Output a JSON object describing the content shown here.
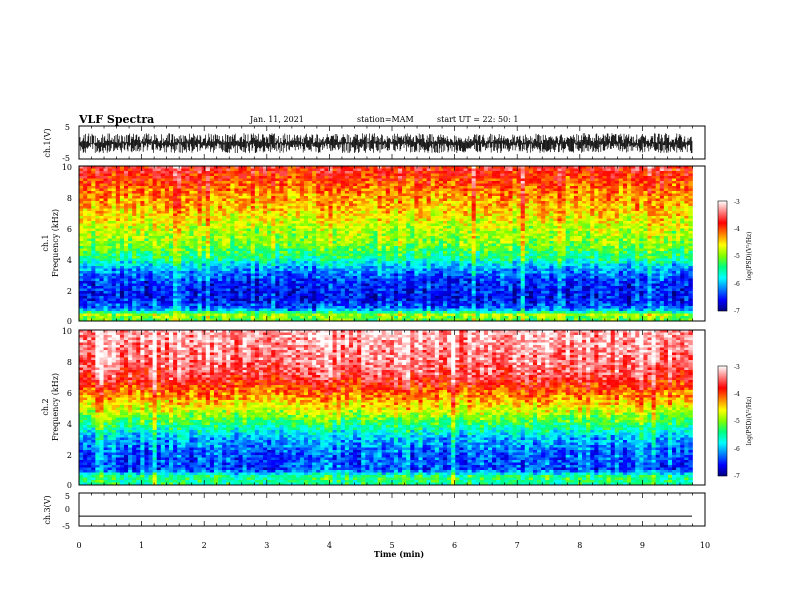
{
  "header": {
    "title": "VLF Spectra",
    "date": "Jan. 11, 2021",
    "station": "station=MAM",
    "start_ut": "start  UT =   22: 50: 1"
  },
  "colors": {
    "colormap": [
      "#00007f",
      "#0000ff",
      "#0080ff",
      "#00ffff",
      "#00ff80",
      "#80ff00",
      "#ffff00",
      "#ff8000",
      "#ff0000",
      "#ff8080",
      "#ffffff"
    ],
    "trace": "#000000",
    "axis": "#000000"
  },
  "chart_data": [
    {
      "type": "line",
      "panel": "ch1-waveform",
      "ylabel": "ch.1(V)",
      "ylim": [
        -5,
        5
      ],
      "y_ticks": [
        "5",
        "-5"
      ],
      "xlim": [
        0,
        10
      ],
      "x_unit": "min",
      "trace_band": [
        -3.2,
        2.8
      ]
    },
    {
      "type": "heatmap",
      "panel": "ch1-spectrogram",
      "ylabel_lines": [
        "ch.1",
        "Frequency (kHz)"
      ],
      "ylim": [
        0,
        10
      ],
      "y_ticks": [
        "0",
        "2",
        "4",
        "6",
        "8",
        "10"
      ],
      "xlim": [
        0,
        9.8
      ],
      "colorbar": {
        "label": "log(PSD)(V²/Hz)",
        "range": [
          -7,
          -3
        ],
        "ticks": [
          "-3",
          "-4",
          "-5",
          "-6",
          "-7"
        ]
      },
      "level_profile": [
        {
          "freq_khz": 0.0,
          "log_psd": -5.2
        },
        {
          "freq_khz": 0.4,
          "log_psd": -4.9
        },
        {
          "freq_khz": 0.8,
          "log_psd": -6.3
        },
        {
          "freq_khz": 1.5,
          "log_psd": -6.6
        },
        {
          "freq_khz": 2.5,
          "log_psd": -6.5
        },
        {
          "freq_khz": 3.5,
          "log_psd": -6.0
        },
        {
          "freq_khz": 4.0,
          "log_psd": -5.5
        },
        {
          "freq_khz": 5.0,
          "log_psd": -5.0
        },
        {
          "freq_khz": 6.0,
          "log_psd": -4.8
        },
        {
          "freq_khz": 7.0,
          "log_psd": -4.5
        },
        {
          "freq_khz": 8.0,
          "log_psd": -4.3
        },
        {
          "freq_khz": 9.0,
          "log_psd": -4.0
        },
        {
          "freq_khz": 10.0,
          "log_psd": -3.7
        }
      ]
    },
    {
      "type": "heatmap",
      "panel": "ch2-spectrogram",
      "ylabel_lines": [
        "ch.2",
        "Frequency (kHz)"
      ],
      "ylim": [
        0,
        10
      ],
      "y_ticks": [
        "0",
        "2",
        "4",
        "6",
        "8",
        "10"
      ],
      "xlim": [
        0,
        9.8
      ],
      "colorbar": {
        "label": "log(PSD)(V²/Hz)",
        "range": [
          -7,
          -3
        ],
        "ticks": [
          "-3",
          "-4",
          "-5",
          "-6",
          "-7"
        ]
      },
      "level_profile": [
        {
          "freq_khz": 0.0,
          "log_psd": -5.5
        },
        {
          "freq_khz": 0.5,
          "log_psd": -5.3
        },
        {
          "freq_khz": 1.0,
          "log_psd": -6.4
        },
        {
          "freq_khz": 2.0,
          "log_psd": -6.3
        },
        {
          "freq_khz": 3.0,
          "log_psd": -6.0
        },
        {
          "freq_khz": 4.0,
          "log_psd": -5.3
        },
        {
          "freq_khz": 5.0,
          "log_psd": -4.6
        },
        {
          "freq_khz": 6.0,
          "log_psd": -4.1
        },
        {
          "freq_khz": 7.0,
          "log_psd": -3.6
        },
        {
          "freq_khz": 8.0,
          "log_psd": -3.4
        },
        {
          "freq_khz": 9.0,
          "log_psd": -3.3
        },
        {
          "freq_khz": 10.0,
          "log_psd": -3.2
        }
      ]
    },
    {
      "type": "line",
      "panel": "ch3-waveform",
      "ylabel": "ch.3(V)",
      "ylim": [
        -5,
        5
      ],
      "y_ticks": [
        "5",
        "0",
        "-5"
      ],
      "xlim": [
        0,
        10
      ],
      "values_flat": -2.0
    }
  ],
  "x_axis": {
    "label": "Time (min)",
    "ticks": [
      "0",
      "1",
      "2",
      "3",
      "4",
      "5",
      "6",
      "7",
      "8",
      "9",
      "10"
    ]
  }
}
